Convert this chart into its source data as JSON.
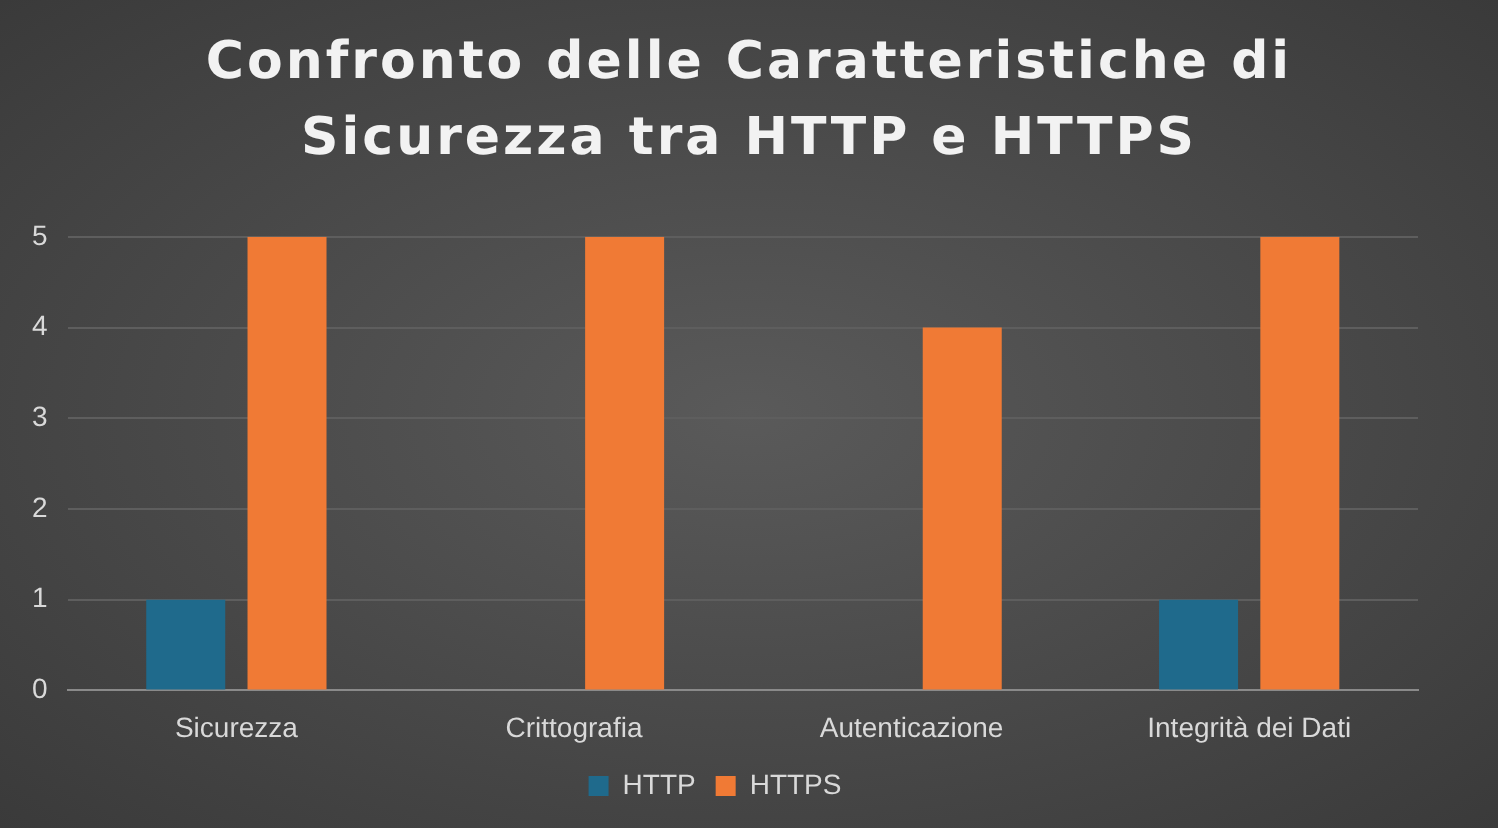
{
  "chart_data": {
    "type": "bar",
    "title": "Confronto delle Caratteristiche di Sicurezza tra HTTP e HTTPS",
    "categories": [
      "Sicurezza",
      "Crittografia",
      "Autenticazione",
      "Integrità dei Dati"
    ],
    "series": [
      {
        "name": "HTTP",
        "color": "#1f6a8c",
        "values": [
          1,
          0,
          0,
          1
        ]
      },
      {
        "name": "HTTPS",
        "color": "#f07a35",
        "values": [
          5,
          5,
          4,
          5
        ]
      }
    ],
    "ylim": [
      0,
      5
    ],
    "yticks": [
      0,
      1,
      2,
      3,
      4,
      5
    ],
    "grid": "y",
    "legend": "bottom"
  }
}
